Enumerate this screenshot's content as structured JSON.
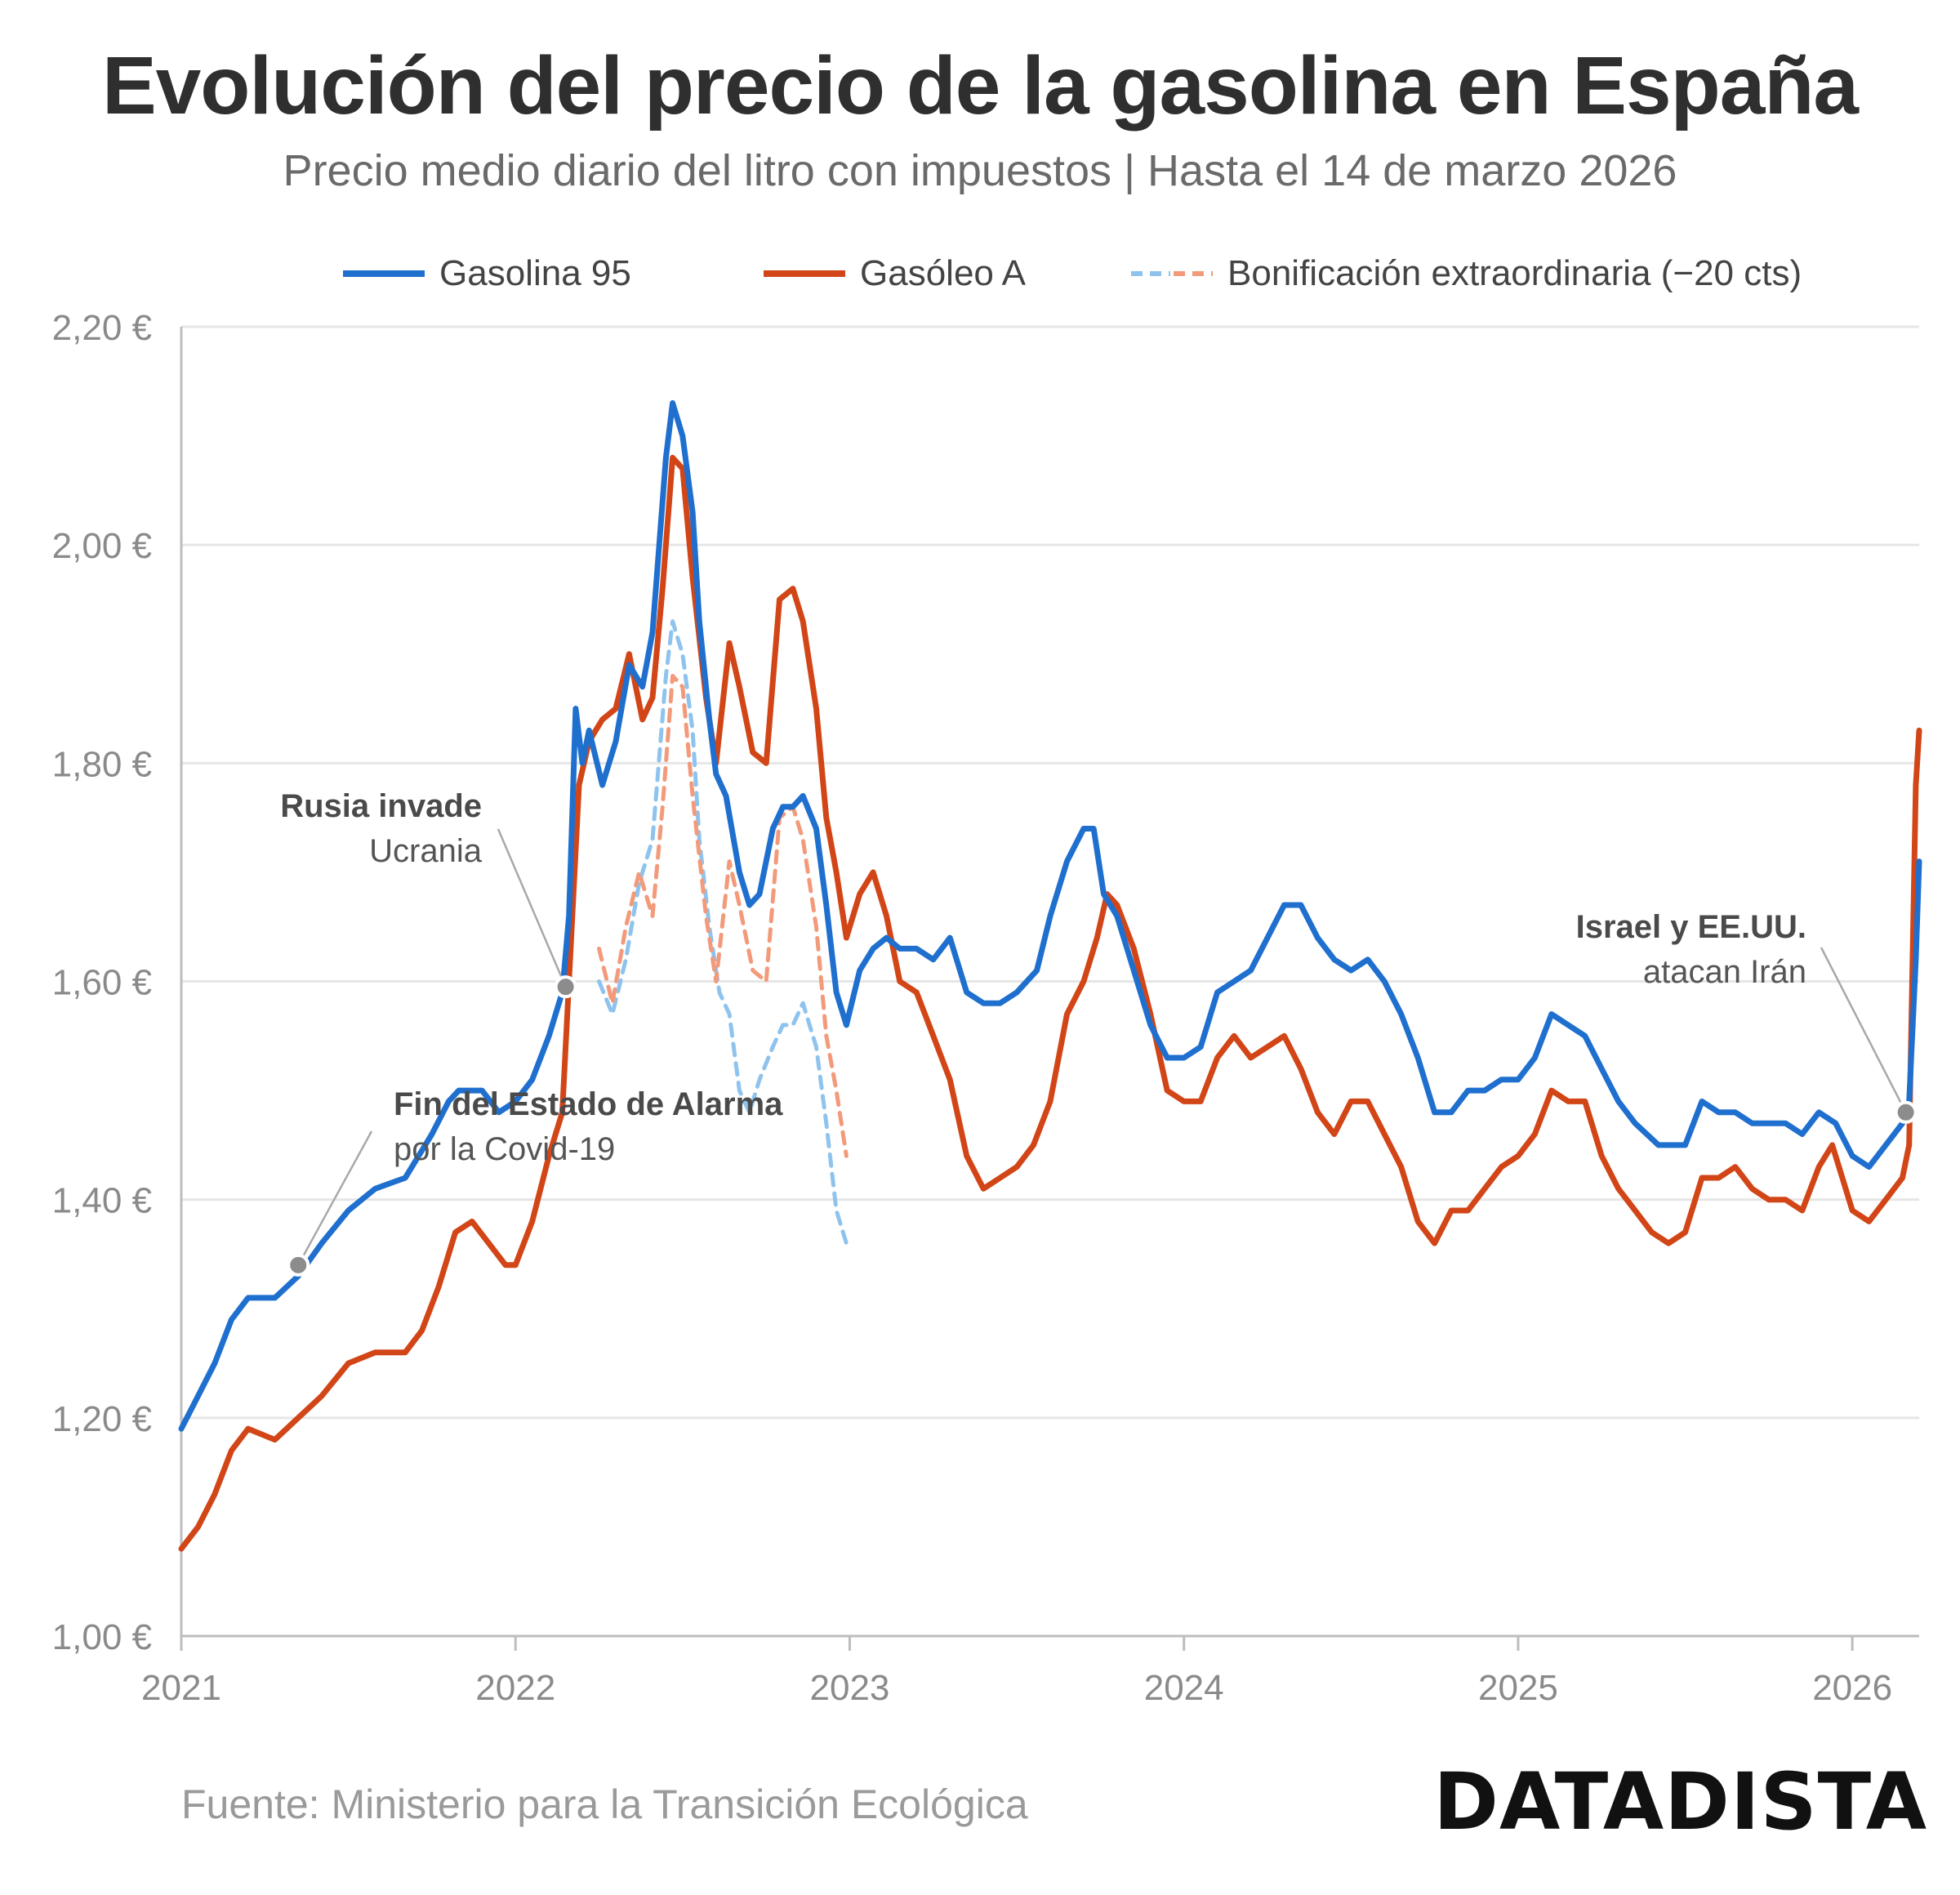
{
  "header": {
    "title": "Evolución del precio de la gasolina en España",
    "subtitle": "Precio medio diario del litro con impuestos | Hasta el 14 de marzo 2026"
  },
  "legend": {
    "items": [
      {
        "label": "Gasolina 95",
        "color": "#1f6fcf"
      },
      {
        "label": "Gasóleo A",
        "color": "#d24517"
      },
      {
        "label": "Bonificación extraordinaria (−20 cts)",
        "colors": [
          "#8ec3ee",
          "#f29a7a"
        ]
      }
    ]
  },
  "footer": {
    "source": "Fuente: Ministerio para la Transición Ecológica",
    "brand": "DATADISTA"
  },
  "chart_data": {
    "type": "line",
    "title": "Evolución del precio de la gasolina en España",
    "subtitle": "Precio medio diario del litro con impuestos | Hasta el 14 de marzo 2026",
    "xlabel": "",
    "ylabel": "",
    "xlim": [
      2021.0,
      2026.2
    ],
    "ylim": [
      1.0,
      2.2
    ],
    "x_ticks": [
      "2021",
      "2022",
      "2023",
      "2024",
      "2025",
      "2026"
    ],
    "y_ticks": [
      "1,00 €",
      "1,20 €",
      "1,40 €",
      "1,60 €",
      "1,80 €",
      "2,00 €",
      "2,20 €"
    ],
    "grid": "horizontal",
    "legend_position": "top",
    "series": [
      {
        "name": "Gasolina 95",
        "color": "#1f6fcf",
        "style": "solid",
        "points": [
          [
            2021.0,
            1.19
          ],
          [
            2021.05,
            1.22
          ],
          [
            2021.1,
            1.25
          ],
          [
            2021.15,
            1.29
          ],
          [
            2021.2,
            1.31
          ],
          [
            2021.28,
            1.31
          ],
          [
            2021.35,
            1.33
          ],
          [
            2021.42,
            1.36
          ],
          [
            2021.5,
            1.39
          ],
          [
            2021.58,
            1.41
          ],
          [
            2021.67,
            1.42
          ],
          [
            2021.75,
            1.46
          ],
          [
            2021.8,
            1.49
          ],
          [
            2021.83,
            1.5
          ],
          [
            2021.9,
            1.5
          ],
          [
            2021.95,
            1.48
          ],
          [
            2022.0,
            1.49
          ],
          [
            2022.05,
            1.51
          ],
          [
            2022.1,
            1.55
          ],
          [
            2022.14,
            1.59
          ],
          [
            2022.16,
            1.66
          ],
          [
            2022.18,
            1.85
          ],
          [
            2022.2,
            1.8
          ],
          [
            2022.22,
            1.83
          ],
          [
            2022.26,
            1.78
          ],
          [
            2022.3,
            1.82
          ],
          [
            2022.34,
            1.89
          ],
          [
            2022.38,
            1.87
          ],
          [
            2022.41,
            1.92
          ],
          [
            2022.45,
            2.08
          ],
          [
            2022.47,
            2.13
          ],
          [
            2022.5,
            2.1
          ],
          [
            2022.53,
            2.03
          ],
          [
            2022.55,
            1.93
          ],
          [
            2022.58,
            1.84
          ],
          [
            2022.6,
            1.79
          ],
          [
            2022.63,
            1.77
          ],
          [
            2022.67,
            1.7
          ],
          [
            2022.7,
            1.67
          ],
          [
            2022.73,
            1.68
          ],
          [
            2022.77,
            1.74
          ],
          [
            2022.8,
            1.76
          ],
          [
            2022.83,
            1.76
          ],
          [
            2022.86,
            1.77
          ],
          [
            2022.9,
            1.74
          ],
          [
            2022.93,
            1.67
          ],
          [
            2022.96,
            1.59
          ],
          [
            2022.99,
            1.56
          ],
          [
            2023.03,
            1.61
          ],
          [
            2023.07,
            1.63
          ],
          [
            2023.11,
            1.64
          ],
          [
            2023.15,
            1.63
          ],
          [
            2023.2,
            1.63
          ],
          [
            2023.25,
            1.62
          ],
          [
            2023.3,
            1.64
          ],
          [
            2023.35,
            1.59
          ],
          [
            2023.4,
            1.58
          ],
          [
            2023.45,
            1.58
          ],
          [
            2023.5,
            1.59
          ],
          [
            2023.56,
            1.61
          ],
          [
            2023.6,
            1.66
          ],
          [
            2023.65,
            1.71
          ],
          [
            2023.7,
            1.74
          ],
          [
            2023.73,
            1.74
          ],
          [
            2023.76,
            1.68
          ],
          [
            2023.8,
            1.66
          ],
          [
            2023.85,
            1.61
          ],
          [
            2023.9,
            1.56
          ],
          [
            2023.95,
            1.53
          ],
          [
            2024.0,
            1.53
          ],
          [
            2024.05,
            1.54
          ],
          [
            2024.1,
            1.59
          ],
          [
            2024.15,
            1.6
          ],
          [
            2024.2,
            1.61
          ],
          [
            2024.25,
            1.64
          ],
          [
            2024.3,
            1.67
          ],
          [
            2024.35,
            1.67
          ],
          [
            2024.4,
            1.64
          ],
          [
            2024.45,
            1.62
          ],
          [
            2024.5,
            1.61
          ],
          [
            2024.55,
            1.62
          ],
          [
            2024.6,
            1.6
          ],
          [
            2024.65,
            1.57
          ],
          [
            2024.7,
            1.53
          ],
          [
            2024.75,
            1.48
          ],
          [
            2024.8,
            1.48
          ],
          [
            2024.85,
            1.5
          ],
          [
            2024.9,
            1.5
          ],
          [
            2024.95,
            1.51
          ],
          [
            2025.0,
            1.51
          ],
          [
            2025.05,
            1.53
          ],
          [
            2025.1,
            1.57
          ],
          [
            2025.15,
            1.56
          ],
          [
            2025.2,
            1.55
          ],
          [
            2025.25,
            1.52
          ],
          [
            2025.3,
            1.49
          ],
          [
            2025.35,
            1.47
          ],
          [
            2025.42,
            1.45
          ],
          [
            2025.5,
            1.45
          ],
          [
            2025.55,
            1.49
          ],
          [
            2025.6,
            1.48
          ],
          [
            2025.65,
            1.48
          ],
          [
            2025.7,
            1.47
          ],
          [
            2025.8,
            1.47
          ],
          [
            2025.85,
            1.46
          ],
          [
            2025.9,
            1.48
          ],
          [
            2025.95,
            1.47
          ],
          [
            2026.0,
            1.44
          ],
          [
            2026.05,
            1.43
          ],
          [
            2026.1,
            1.45
          ],
          [
            2026.15,
            1.47
          ],
          [
            2026.17,
            1.49
          ],
          [
            2026.19,
            1.62
          ],
          [
            2026.2,
            1.71
          ]
        ]
      },
      {
        "name": "Gasóleo A",
        "color": "#d24517",
        "style": "solid",
        "points": [
          [
            2021.0,
            1.08
          ],
          [
            2021.05,
            1.1
          ],
          [
            2021.1,
            1.13
          ],
          [
            2021.15,
            1.17
          ],
          [
            2021.2,
            1.19
          ],
          [
            2021.28,
            1.18
          ],
          [
            2021.35,
            1.2
          ],
          [
            2021.42,
            1.22
          ],
          [
            2021.5,
            1.25
          ],
          [
            2021.58,
            1.26
          ],
          [
            2021.67,
            1.26
          ],
          [
            2021.72,
            1.28
          ],
          [
            2021.77,
            1.32
          ],
          [
            2021.82,
            1.37
          ],
          [
            2021.87,
            1.38
          ],
          [
            2021.92,
            1.36
          ],
          [
            2021.97,
            1.34
          ],
          [
            2022.0,
            1.34
          ],
          [
            2022.05,
            1.38
          ],
          [
            2022.1,
            1.44
          ],
          [
            2022.14,
            1.48
          ],
          [
            2022.16,
            1.6
          ],
          [
            2022.19,
            1.78
          ],
          [
            2022.22,
            1.82
          ],
          [
            2022.26,
            1.84
          ],
          [
            2022.3,
            1.85
          ],
          [
            2022.34,
            1.9
          ],
          [
            2022.38,
            1.84
          ],
          [
            2022.41,
            1.86
          ],
          [
            2022.44,
            1.96
          ],
          [
            2022.47,
            2.08
          ],
          [
            2022.5,
            2.07
          ],
          [
            2022.53,
            1.97
          ],
          [
            2022.57,
            1.86
          ],
          [
            2022.6,
            1.8
          ],
          [
            2022.64,
            1.91
          ],
          [
            2022.67,
            1.87
          ],
          [
            2022.71,
            1.81
          ],
          [
            2022.75,
            1.8
          ],
          [
            2022.79,
            1.95
          ],
          [
            2022.83,
            1.96
          ],
          [
            2022.86,
            1.93
          ],
          [
            2022.9,
            1.85
          ],
          [
            2022.93,
            1.75
          ],
          [
            2022.96,
            1.7
          ],
          [
            2022.99,
            1.64
          ],
          [
            2023.03,
            1.68
          ],
          [
            2023.07,
            1.7
          ],
          [
            2023.11,
            1.66
          ],
          [
            2023.15,
            1.6
          ],
          [
            2023.2,
            1.59
          ],
          [
            2023.25,
            1.55
          ],
          [
            2023.3,
            1.51
          ],
          [
            2023.35,
            1.44
          ],
          [
            2023.4,
            1.41
          ],
          [
            2023.45,
            1.42
          ],
          [
            2023.5,
            1.43
          ],
          [
            2023.55,
            1.45
          ],
          [
            2023.6,
            1.49
          ],
          [
            2023.65,
            1.57
          ],
          [
            2023.7,
            1.6
          ],
          [
            2023.74,
            1.64
          ],
          [
            2023.77,
            1.68
          ],
          [
            2023.8,
            1.67
          ],
          [
            2023.85,
            1.63
          ],
          [
            2023.9,
            1.57
          ],
          [
            2023.95,
            1.5
          ],
          [
            2024.0,
            1.49
          ],
          [
            2024.05,
            1.49
          ],
          [
            2024.1,
            1.53
          ],
          [
            2024.15,
            1.55
          ],
          [
            2024.2,
            1.53
          ],
          [
            2024.25,
            1.54
          ],
          [
            2024.3,
            1.55
          ],
          [
            2024.35,
            1.52
          ],
          [
            2024.4,
            1.48
          ],
          [
            2024.45,
            1.46
          ],
          [
            2024.5,
            1.49
          ],
          [
            2024.55,
            1.49
          ],
          [
            2024.6,
            1.46
          ],
          [
            2024.65,
            1.43
          ],
          [
            2024.7,
            1.38
          ],
          [
            2024.75,
            1.36
          ],
          [
            2024.8,
            1.39
          ],
          [
            2024.85,
            1.39
          ],
          [
            2024.9,
            1.41
          ],
          [
            2024.95,
            1.43
          ],
          [
            2025.0,
            1.44
          ],
          [
            2025.05,
            1.46
          ],
          [
            2025.1,
            1.5
          ],
          [
            2025.15,
            1.49
          ],
          [
            2025.2,
            1.49
          ],
          [
            2025.25,
            1.44
          ],
          [
            2025.3,
            1.41
          ],
          [
            2025.35,
            1.39
          ],
          [
            2025.4,
            1.37
          ],
          [
            2025.45,
            1.36
          ],
          [
            2025.5,
            1.37
          ],
          [
            2025.55,
            1.42
          ],
          [
            2025.6,
            1.42
          ],
          [
            2025.65,
            1.43
          ],
          [
            2025.7,
            1.41
          ],
          [
            2025.75,
            1.4
          ],
          [
            2025.8,
            1.4
          ],
          [
            2025.85,
            1.39
          ],
          [
            2025.9,
            1.43
          ],
          [
            2025.94,
            1.45
          ],
          [
            2026.0,
            1.39
          ],
          [
            2026.05,
            1.38
          ],
          [
            2026.1,
            1.4
          ],
          [
            2026.15,
            1.42
          ],
          [
            2026.17,
            1.45
          ],
          [
            2026.19,
            1.78
          ],
          [
            2026.2,
            1.83
          ]
        ]
      },
      {
        "name": "Gasolina 95 (bonificación)",
        "color": "#8ec3ee",
        "style": "dashed",
        "points": [
          [
            2022.25,
            1.6
          ],
          [
            2022.29,
            1.57
          ],
          [
            2022.33,
            1.62
          ],
          [
            2022.37,
            1.69
          ],
          [
            2022.41,
            1.73
          ],
          [
            2022.45,
            1.88
          ],
          [
            2022.47,
            1.93
          ],
          [
            2022.5,
            1.9
          ],
          [
            2022.53,
            1.83
          ],
          [
            2022.55,
            1.73
          ],
          [
            2022.58,
            1.65
          ],
          [
            2022.61,
            1.59
          ],
          [
            2022.64,
            1.57
          ],
          [
            2022.67,
            1.5
          ],
          [
            2022.7,
            1.48
          ],
          [
            2022.73,
            1.51
          ],
          [
            2022.77,
            1.54
          ],
          [
            2022.8,
            1.56
          ],
          [
            2022.83,
            1.56
          ],
          [
            2022.86,
            1.58
          ],
          [
            2022.9,
            1.54
          ],
          [
            2022.93,
            1.47
          ],
          [
            2022.96,
            1.39
          ],
          [
            2022.99,
            1.36
          ]
        ]
      },
      {
        "name": "Gasóleo A (bonificación)",
        "color": "#f29a7a",
        "style": "dashed",
        "points": [
          [
            2022.25,
            1.63
          ],
          [
            2022.29,
            1.58
          ],
          [
            2022.33,
            1.65
          ],
          [
            2022.37,
            1.7
          ],
          [
            2022.41,
            1.66
          ],
          [
            2022.44,
            1.76
          ],
          [
            2022.47,
            1.88
          ],
          [
            2022.5,
            1.87
          ],
          [
            2022.53,
            1.77
          ],
          [
            2022.57,
            1.66
          ],
          [
            2022.6,
            1.6
          ],
          [
            2022.64,
            1.71
          ],
          [
            2022.67,
            1.67
          ],
          [
            2022.71,
            1.61
          ],
          [
            2022.75,
            1.6
          ],
          [
            2022.79,
            1.75
          ],
          [
            2022.83,
            1.76
          ],
          [
            2022.86,
            1.73
          ],
          [
            2022.9,
            1.65
          ],
          [
            2022.93,
            1.55
          ],
          [
            2022.96,
            1.5
          ],
          [
            2022.99,
            1.44
          ]
        ]
      }
    ],
    "annotations": [
      {
        "x": 2021.35,
        "y": 1.34,
        "text_bold": "Fin del Estado de Alarma",
        "text": "por la Covid-19"
      },
      {
        "x": 2022.15,
        "y": 1.595,
        "text_bold": "Rusia invade",
        "text": "Ucrania"
      },
      {
        "x": 2026.16,
        "y": 1.48,
        "text_bold": "Israel y EE.UU.",
        "text": "atacan Irán"
      }
    ]
  }
}
